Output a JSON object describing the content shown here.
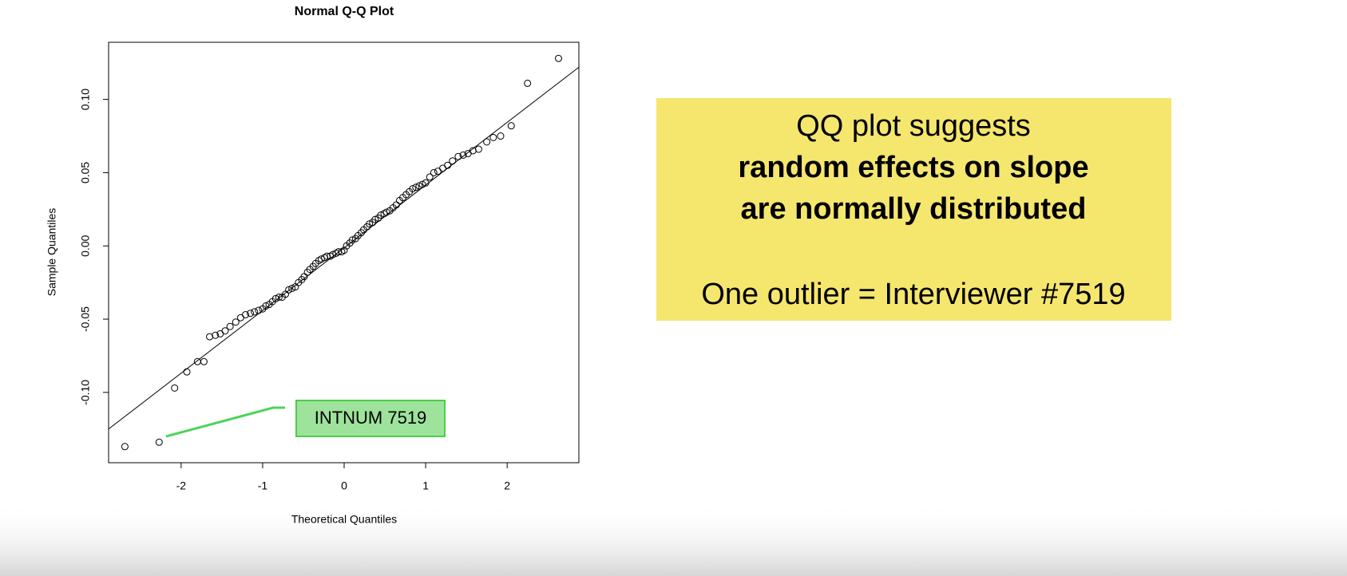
{
  "chart_data": {
    "type": "scatter",
    "title": "Normal Q-Q Plot",
    "x_label": "Theoretical Quantiles",
    "y_label": "Sample Quantiles",
    "x": [
      -2.69,
      -2.27,
      -2.08,
      -1.93,
      -1.8,
      -1.72,
      -1.65,
      -1.58,
      -1.52,
      -1.46,
      -1.4,
      -1.33,
      -1.27,
      -1.21,
      -1.15,
      -1.1,
      -1.05,
      -1.0,
      -0.96,
      -0.92,
      -0.88,
      -0.84,
      -0.8,
      -0.76,
      -0.72,
      -0.68,
      -0.64,
      -0.6,
      -0.56,
      -0.52,
      -0.49,
      -0.45,
      -0.42,
      -0.38,
      -0.35,
      -0.31,
      -0.28,
      -0.24,
      -0.21,
      -0.17,
      -0.14,
      -0.1,
      -0.07,
      -0.03,
      0.0,
      0.03,
      0.07,
      0.1,
      0.14,
      0.17,
      0.21,
      0.24,
      0.28,
      0.31,
      0.35,
      0.38,
      0.42,
      0.45,
      0.49,
      0.52,
      0.56,
      0.6,
      0.64,
      0.68,
      0.72,
      0.76,
      0.8,
      0.84,
      0.88,
      0.92,
      0.96,
      1.0,
      1.05,
      1.1,
      1.15,
      1.21,
      1.27,
      1.33,
      1.4,
      1.46,
      1.52,
      1.58,
      1.65,
      1.75,
      1.83,
      1.92,
      2.05,
      2.25,
      2.63
    ],
    "y": [
      -0.137,
      -0.134,
      -0.097,
      -0.086,
      -0.079,
      -0.079,
      -0.062,
      -0.061,
      -0.06,
      -0.058,
      -0.055,
      -0.052,
      -0.049,
      -0.047,
      -0.046,
      -0.045,
      -0.044,
      -0.043,
      -0.041,
      -0.04,
      -0.038,
      -0.036,
      -0.035,
      -0.035,
      -0.033,
      -0.03,
      -0.029,
      -0.028,
      -0.025,
      -0.023,
      -0.021,
      -0.018,
      -0.016,
      -0.014,
      -0.012,
      -0.01,
      -0.009,
      -0.008,
      -0.007,
      -0.007,
      -0.006,
      -0.005,
      -0.004,
      -0.004,
      -0.003,
      0.0,
      0.002,
      0.004,
      0.005,
      0.007,
      0.009,
      0.011,
      0.013,
      0.015,
      0.016,
      0.018,
      0.019,
      0.021,
      0.022,
      0.023,
      0.024,
      0.026,
      0.028,
      0.031,
      0.033,
      0.035,
      0.037,
      0.039,
      0.04,
      0.041,
      0.042,
      0.043,
      0.047,
      0.05,
      0.051,
      0.053,
      0.055,
      0.058,
      0.061,
      0.062,
      0.063,
      0.065,
      0.066,
      0.071,
      0.074,
      0.075,
      0.082,
      0.111,
      0.128
    ],
    "color": "#000000",
    "qq_line": {
      "x": [
        -2.89,
        2.88
      ],
      "y": [
        -0.125,
        0.122
      ]
    },
    "xlim": [
      -2.89,
      2.88
    ],
    "ylim": [
      -0.148,
      0.139
    ],
    "xticks": [
      -2,
      -1,
      0,
      1,
      2
    ],
    "yticks": [
      {
        "value": -0.1,
        "label": "-0.10"
      },
      {
        "value": -0.05,
        "label": "-0.05"
      },
      {
        "value": 0,
        "label": "0.00"
      },
      {
        "value": 0.05,
        "label": "0.05"
      },
      {
        "value": 0.1,
        "label": "0.10"
      }
    ],
    "annotations": [
      {
        "text": "INTNUM 7519"
      }
    ]
  },
  "callout": {
    "lines": [
      "QQ plot suggests",
      "random effects on slope",
      "are normally distributed",
      "One outlier = Interviewer #7519"
    ]
  }
}
